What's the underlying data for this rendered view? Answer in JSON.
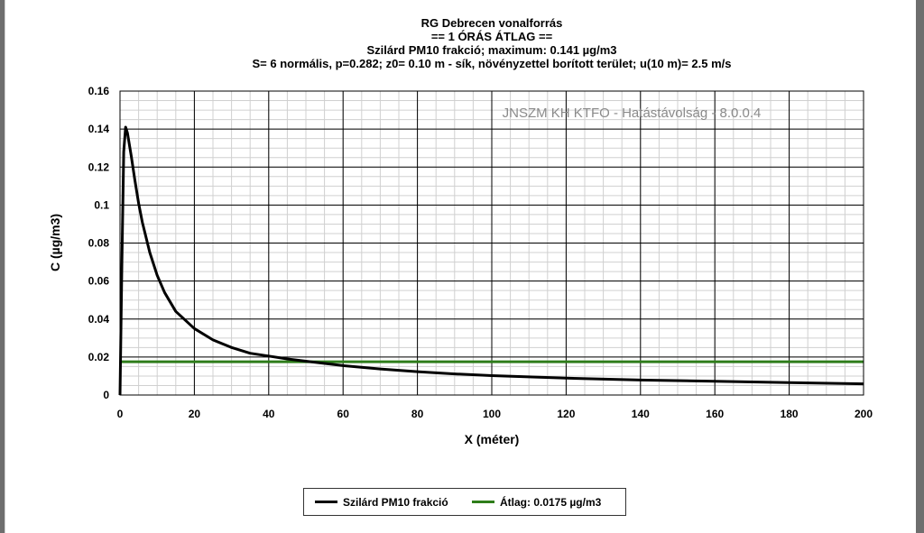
{
  "chart_data": {
    "type": "line",
    "title": "RG Debrecen vonalforrás",
    "subtitle_lines": [
      "== 1 ÓRÁS ÁTLAG ==",
      "Szilárd PM10 frakció; maximum: 0.141 µg/m3",
      "S= 6 normális, p=0.282; z0= 0.10 m - sík, növényzettel borított terület; u(10 m)= 2.5 m/s"
    ],
    "watermark": "JNSZM KH KTFO - Hatástávolság  - 8.0.0.4",
    "xlabel": "X (méter)",
    "ylabel": "C (µg/m3)",
    "xlim": [
      0,
      200
    ],
    "ylim": [
      0,
      0.16
    ],
    "x_ticks": [
      0,
      20,
      40,
      60,
      80,
      100,
      120,
      140,
      160,
      180,
      200
    ],
    "y_ticks": [
      0,
      0.02,
      0.04,
      0.06,
      0.08,
      0.1,
      0.12,
      0.14,
      0.16
    ],
    "y_tick_labels": [
      "0",
      "0.02",
      "0.04",
      "0.06",
      "0.08",
      "0.1",
      "0.12",
      "0.14",
      "0.16"
    ],
    "grid": true,
    "legend_position": "bottom",
    "series": [
      {
        "name": "Szilárd PM10 frakció",
        "color": "#000000",
        "x": [
          0,
          0.5,
          1,
          1.5,
          2,
          3,
          4,
          5,
          6,
          8,
          10,
          12,
          15,
          20,
          25,
          30,
          35,
          40,
          45,
          50,
          60,
          70,
          80,
          90,
          100,
          120,
          140,
          160,
          180,
          200
        ],
        "y": [
          0,
          0.07,
          0.128,
          0.141,
          0.138,
          0.126,
          0.113,
          0.101,
          0.091,
          0.075,
          0.063,
          0.054,
          0.044,
          0.035,
          0.029,
          0.025,
          0.022,
          0.0205,
          0.019,
          0.0178,
          0.0155,
          0.0137,
          0.0123,
          0.0111,
          0.0102,
          0.0089,
          0.0079,
          0.0072,
          0.0065,
          0.0059
        ]
      },
      {
        "name": "Átlag: 0.0175 µg/m3",
        "color": "#2e7d1a",
        "x": [
          0,
          200
        ],
        "y": [
          0.0175,
          0.0175
        ]
      }
    ]
  }
}
